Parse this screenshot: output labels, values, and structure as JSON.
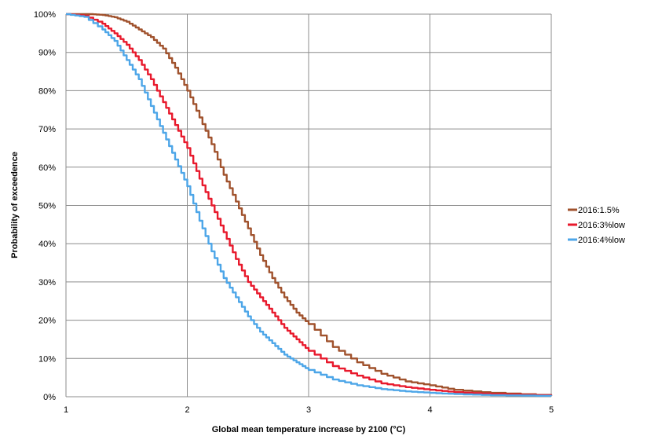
{
  "chart_data": {
    "type": "line",
    "title": "",
    "xlabel": "Global mean temperature increase by 2100 (°C)",
    "ylabel": "Probability of exceedence",
    "xlim": [
      1,
      5
    ],
    "ylim": [
      0,
      100
    ],
    "x_ticks": [
      "1",
      "2",
      "3",
      "4",
      "5"
    ],
    "y_ticks": [
      "0%",
      "10%",
      "20%",
      "30%",
      "40%",
      "50%",
      "60%",
      "70%",
      "80%",
      "90%",
      "100%"
    ],
    "grid": true,
    "legend_position": "right",
    "series": [
      {
        "name": "2016:1.5%",
        "color": "#a0522d",
        "x": [
          1.0,
          1.2,
          1.3,
          1.4,
          1.5,
          1.6,
          1.7,
          1.8,
          1.9,
          2.0,
          2.1,
          2.2,
          2.3,
          2.4,
          2.5,
          2.6,
          2.7,
          2.8,
          2.9,
          3.0,
          3.2,
          3.4,
          3.6,
          3.8,
          4.0,
          4.2,
          4.5,
          5.0
        ],
        "values": [
          100,
          100,
          99.8,
          99.2,
          98,
          96,
          94,
          91,
          86,
          80,
          73,
          66,
          58,
          51,
          44,
          37,
          31,
          26,
          22,
          19,
          13,
          9,
          6,
          4,
          3,
          1.8,
          1,
          0.3
        ]
      },
      {
        "name": "2016:3%low",
        "color": "#e8192c",
        "x": [
          1.0,
          1.15,
          1.3,
          1.4,
          1.5,
          1.6,
          1.7,
          1.8,
          1.9,
          2.0,
          2.1,
          2.2,
          2.3,
          2.4,
          2.5,
          2.6,
          2.7,
          2.8,
          2.9,
          3.0,
          3.2,
          3.4,
          3.6,
          3.8,
          4.0,
          4.2,
          4.5,
          5.0
        ],
        "values": [
          100,
          99.6,
          97.5,
          95,
          92,
          88,
          83,
          77,
          71,
          65,
          57,
          50,
          43,
          36,
          30,
          26,
          22,
          18,
          15,
          12,
          8,
          5.5,
          3.5,
          2.5,
          1.8,
          1.2,
          0.7,
          0.3
        ]
      },
      {
        "name": "2016:4%low",
        "color": "#4da6e8",
        "x": [
          1.0,
          1.15,
          1.3,
          1.4,
          1.5,
          1.6,
          1.7,
          1.8,
          1.9,
          2.0,
          2.1,
          2.2,
          2.3,
          2.4,
          2.5,
          2.6,
          2.7,
          2.8,
          2.9,
          3.0,
          3.2,
          3.4,
          3.6,
          3.8,
          4.0,
          4.2,
          4.5,
          5.0
        ],
        "values": [
          100,
          99.3,
          96,
          93,
          88,
          83,
          76,
          69,
          62,
          55,
          46,
          38,
          31,
          26,
          21,
          17,
          14,
          11,
          9,
          7,
          4.5,
          3,
          2,
          1.4,
          1,
          0.7,
          0.4,
          0.2
        ]
      }
    ]
  }
}
